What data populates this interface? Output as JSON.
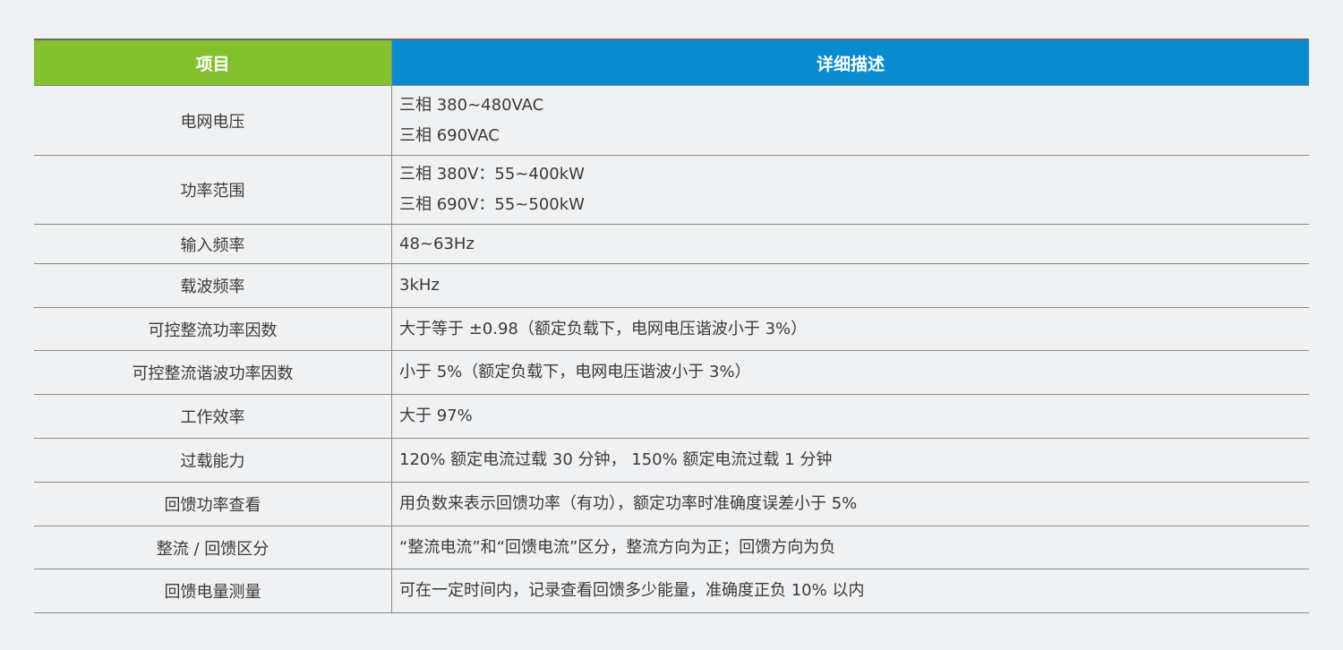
{
  "header": {
    "item": "项目",
    "description": "详细描述"
  },
  "colors": {
    "item_header": "#84c12f",
    "description_header": "#0a8bd0",
    "background": "#f0f1f3"
  },
  "rows": [
    {
      "item": "电网电压",
      "lines": [
        "三相 380~480VAC",
        "三相 690VAC"
      ]
    },
    {
      "item": "功率范围",
      "lines": [
        "三相 380V：55~400kW",
        "三相 690V：55~500kW"
      ]
    },
    {
      "item": "输入频率",
      "lines": [
        "48~63Hz"
      ]
    },
    {
      "item": "载波频率",
      "lines": [
        "3kHz"
      ]
    },
    {
      "item": "可控整流功率因数",
      "lines": [
        "大于等于 ±0.98（额定负载下，电网电压谐波小于 3%）"
      ]
    },
    {
      "item": "可控整流谐波功率因数",
      "lines": [
        "小于 5%（额定负载下，电网电压谐波小于 3%）"
      ]
    },
    {
      "item": "工作效率",
      "lines": [
        "大于 97%"
      ]
    },
    {
      "item": "过载能力",
      "lines": [
        "120% 额定电流过载 30 分钟， 150% 额定电流过载 1 分钟"
      ]
    },
    {
      "item": "回馈功率查看",
      "lines": [
        "用负数来表示回馈功率（有功），额定功率时准确度误差小于 5%"
      ]
    },
    {
      "item": "整流 / 回馈区分",
      "lines": [
        "“整流电流”和“回馈电流”区分，整流方向为正；回馈方向为负"
      ]
    },
    {
      "item": "回馈电量测量",
      "lines": [
        "可在一定时间内，记录查看回馈多少能量，准确度正负 10% 以内"
      ]
    }
  ]
}
